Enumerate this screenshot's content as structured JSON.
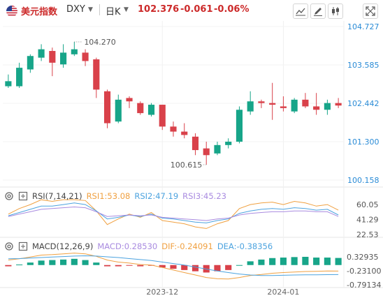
{
  "header": {
    "name": "美元指数",
    "code": "DXY",
    "period": "日K",
    "price": "102.376",
    "change": "-0.061",
    "change_pct": "-0.06%"
  },
  "toolbar": {
    "icons": [
      "trend-line-icon",
      "pencil-icon",
      "candle-style-icon",
      "fullscreen-icon"
    ]
  },
  "colors": {
    "up": "#17a589",
    "down": "#d9414a",
    "rsi1": "#f0a040",
    "rsi2": "#4ca3df",
    "rsi3": "#a98be0",
    "diff": "#f0a040",
    "dea": "#4ca3df"
  },
  "indicators": {
    "rsi": {
      "title": "RSI(7,14,21)",
      "rsi1": "RSI1:53.08",
      "rsi2": "RSI2:47.19",
      "rsi3": "RSI3:45.23",
      "ticks": [
        "60.05",
        "41.29",
        "22.53"
      ]
    },
    "macd": {
      "title": "MACD(12,26,9)",
      "macd": "MACD:0.28530",
      "dif": "DIF:-0.24091",
      "dea": "DEA:-0.38356",
      "ticks": [
        "0.32935",
        "-0.23100",
        "-0.79134"
      ]
    }
  },
  "chart_data": {
    "type": "candlestick",
    "y_ticks": [
      "104.727",
      "103.585",
      "102.442",
      "101.300",
      "100.158"
    ],
    "ylim": [
      100.158,
      104.727
    ],
    "x_ticks": [
      "2023-12",
      "2024-01"
    ],
    "annotations": {
      "high": "104.270",
      "low": "100.615"
    },
    "candles": [
      {
        "o": 102.95,
        "h": 103.3,
        "l": 102.9,
        "c": 103.1
      },
      {
        "o": 102.95,
        "h": 103.65,
        "l": 102.9,
        "c": 103.5
      },
      {
        "o": 103.45,
        "h": 103.9,
        "l": 103.35,
        "c": 103.85
      },
      {
        "o": 103.8,
        "h": 104.2,
        "l": 103.7,
        "c": 104.05
      },
      {
        "o": 104.0,
        "h": 104.1,
        "l": 103.25,
        "c": 103.65
      },
      {
        "o": 103.6,
        "h": 104.2,
        "l": 103.5,
        "c": 103.95
      },
      {
        "o": 103.9,
        "h": 104.27,
        "l": 103.85,
        "c": 104.05
      },
      {
        "o": 103.95,
        "h": 104.05,
        "l": 103.55,
        "c": 103.7
      },
      {
        "o": 103.75,
        "h": 103.8,
        "l": 102.6,
        "c": 102.85
      },
      {
        "o": 102.8,
        "h": 102.85,
        "l": 101.7,
        "c": 101.85
      },
      {
        "o": 101.9,
        "h": 102.7,
        "l": 101.85,
        "c": 102.55
      },
      {
        "o": 102.6,
        "h": 102.65,
        "l": 102.3,
        "c": 102.5
      },
      {
        "o": 102.45,
        "h": 102.5,
        "l": 102.1,
        "c": 102.15
      },
      {
        "o": 102.1,
        "h": 102.45,
        "l": 102.05,
        "c": 102.4
      },
      {
        "o": 102.4,
        "h": 102.4,
        "l": 101.65,
        "c": 101.75
      },
      {
        "o": 101.75,
        "h": 101.9,
        "l": 101.45,
        "c": 101.6
      },
      {
        "o": 101.6,
        "h": 101.85,
        "l": 101.4,
        "c": 101.5
      },
      {
        "o": 101.45,
        "h": 101.55,
        "l": 100.9,
        "c": 101.05
      },
      {
        "o": 101.1,
        "h": 101.3,
        "l": 100.615,
        "c": 100.9
      },
      {
        "o": 100.95,
        "h": 101.3,
        "l": 100.9,
        "c": 101.2
      },
      {
        "o": 101.2,
        "h": 101.4,
        "l": 101.1,
        "c": 101.3
      },
      {
        "o": 101.3,
        "h": 102.35,
        "l": 101.25,
        "c": 102.25
      },
      {
        "o": 102.2,
        "h": 102.8,
        "l": 102.1,
        "c": 102.5
      },
      {
        "o": 102.5,
        "h": 102.55,
        "l": 102.3,
        "c": 102.45
      },
      {
        "o": 102.45,
        "h": 103.05,
        "l": 101.95,
        "c": 102.4
      },
      {
        "o": 102.35,
        "h": 102.65,
        "l": 102.2,
        "c": 102.3
      },
      {
        "o": 102.2,
        "h": 102.6,
        "l": 102.15,
        "c": 102.55
      },
      {
        "o": 102.55,
        "h": 102.75,
        "l": 102.3,
        "c": 102.35
      },
      {
        "o": 102.35,
        "h": 102.75,
        "l": 102.1,
        "c": 102.25
      },
      {
        "o": 102.25,
        "h": 102.55,
        "l": 102.1,
        "c": 102.45
      },
      {
        "o": 102.45,
        "h": 102.6,
        "l": 102.3,
        "c": 102.376
      }
    ],
    "rsi_series": {
      "rsi1": [
        48,
        55,
        60,
        66,
        64,
        68,
        70,
        65,
        52,
        35,
        42,
        48,
        44,
        50,
        40,
        38,
        36,
        32,
        30,
        36,
        40,
        55,
        60,
        62,
        63,
        60,
        64,
        62,
        58,
        60,
        53
      ],
      "rsi2": [
        46,
        50,
        54,
        58,
        58,
        60,
        62,
        60,
        52,
        42,
        44,
        47,
        45,
        48,
        43,
        42,
        40,
        38,
        37,
        40,
        42,
        49,
        52,
        54,
        55,
        54,
        56,
        55,
        53,
        54,
        47
      ],
      "rsi3": [
        45,
        48,
        51,
        54,
        55,
        56,
        57,
        56,
        51,
        45,
        46,
        47,
        46,
        47,
        44,
        43,
        42,
        41,
        40,
        42,
        43,
        47,
        49,
        50,
        51,
        51,
        52,
        52,
        51,
        51,
        45
      ]
    },
    "macd_series": {
      "hist": [
        -0.05,
        0.02,
        0.1,
        0.18,
        0.2,
        0.22,
        0.25,
        0.2,
        0.1,
        -0.05,
        -0.05,
        -0.02,
        -0.05,
        -0.02,
        -0.1,
        -0.15,
        -0.2,
        -0.25,
        -0.3,
        -0.25,
        -0.2,
        0.0,
        0.15,
        0.22,
        0.28,
        0.3,
        0.32,
        0.33,
        0.3,
        0.3,
        0.285
      ],
      "dif": [
        0.2,
        0.25,
        0.32,
        0.4,
        0.42,
        0.45,
        0.48,
        0.45,
        0.35,
        0.2,
        0.12,
        0.08,
        0.02,
        0.0,
        -0.1,
        -0.2,
        -0.3,
        -0.4,
        -0.5,
        -0.55,
        -0.56,
        -0.5,
        -0.42,
        -0.38,
        -0.33,
        -0.3,
        -0.28,
        -0.26,
        -0.25,
        -0.24,
        -0.241
      ],
      "dea": [
        0.25,
        0.26,
        0.28,
        0.3,
        0.32,
        0.34,
        0.36,
        0.37,
        0.36,
        0.33,
        0.3,
        0.26,
        0.22,
        0.18,
        0.12,
        0.06,
        0.0,
        -0.08,
        -0.16,
        -0.24,
        -0.3,
        -0.36,
        -0.4,
        -0.42,
        -0.42,
        -0.41,
        -0.4,
        -0.39,
        -0.39,
        -0.385,
        -0.38356
      ]
    }
  }
}
